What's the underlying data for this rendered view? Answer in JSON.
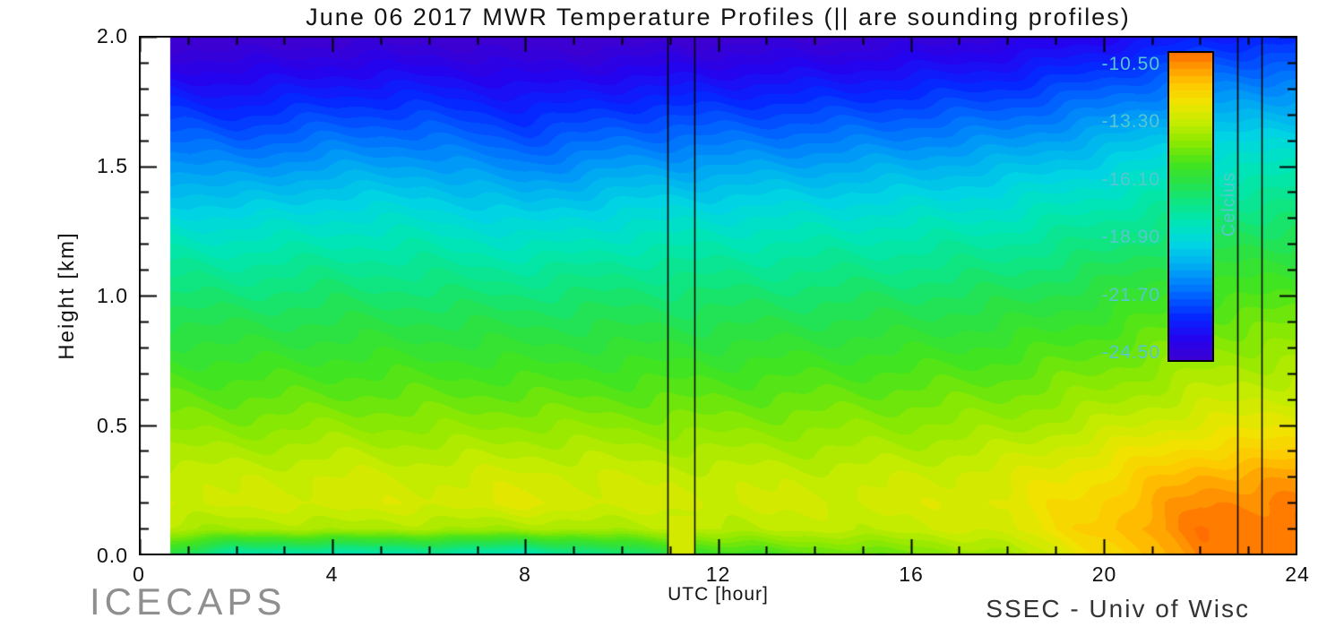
{
  "title": "June 06 2017 MWR Temperature Profiles (|| are sounding profiles)",
  "axes": {
    "xlabel": "UTC [hour]",
    "ylabel": "Height [km]"
  },
  "footer": {
    "left": "ICECAPS",
    "right": "SSEC - Univ of Wisc"
  },
  "chart_data": {
    "type": "heatmap",
    "title": "June 06 2017 MWR Temperature Profiles (|| are sounding profiles)",
    "xlabel": "UTC [hour]",
    "ylabel": "Height [km]",
    "xlim": [
      0,
      24
    ],
    "ylim": [
      0,
      2
    ],
    "x_ticks": [
      0,
      4,
      8,
      12,
      16,
      20,
      24
    ],
    "x_tick_labels": [
      "0",
      "4",
      "8",
      "12",
      "16",
      "20",
      "24"
    ],
    "x_minor_step": 1,
    "y_ticks": [
      0,
      0.5,
      1,
      1.5,
      2
    ],
    "y_tick_labels": [
      "0.0",
      "0.5",
      "1.0",
      "1.5",
      "2.0"
    ],
    "y_minor_step": 0.1,
    "data_start_hour": 0.65,
    "contour_step": 0.35,
    "color_domain": [
      -24.75,
      -9.85
    ],
    "soundings_hours": [
      10.95,
      11.5,
      22.75,
      23.25
    ],
    "colorbar": {
      "label": "Celcius",
      "tick_values": [
        -10.5,
        -13.3,
        -16.1,
        -18.9,
        -21.7,
        -24.5
      ],
      "tick_labels": [
        "-10.50",
        "-13.30",
        "-16.10",
        "-18.90",
        "-21.70",
        "-24.50"
      ],
      "text_color": "#58c6d2"
    },
    "colormap": [
      {
        "u": 0.0,
        "c": "#3c00d2"
      },
      {
        "u": 0.07,
        "c": "#2403f0"
      },
      {
        "u": 0.14,
        "c": "#0428ff"
      },
      {
        "u": 0.22,
        "c": "#006cff"
      },
      {
        "u": 0.3,
        "c": "#00a8f4"
      },
      {
        "u": 0.38,
        "c": "#00d6e2"
      },
      {
        "u": 0.45,
        "c": "#00e6b4"
      },
      {
        "u": 0.52,
        "c": "#10e57c"
      },
      {
        "u": 0.58,
        "c": "#2ae246"
      },
      {
        "u": 0.64,
        "c": "#44e41c"
      },
      {
        "u": 0.71,
        "c": "#8ee800"
      },
      {
        "u": 0.78,
        "c": "#c8ec00"
      },
      {
        "u": 0.84,
        "c": "#f0e400"
      },
      {
        "u": 0.9,
        "c": "#ffc800"
      },
      {
        "u": 0.95,
        "c": "#ff9c00"
      },
      {
        "u": 1.0,
        "c": "#ff6e00"
      }
    ],
    "grid": {
      "times": [
        0,
        2,
        4,
        6,
        8,
        10,
        12,
        14,
        16,
        18,
        20,
        22,
        24
      ],
      "heights": [
        0.0,
        0.1,
        0.2,
        0.3,
        0.4,
        0.5,
        0.6,
        0.7,
        0.8,
        0.9,
        1.0,
        1.1,
        1.2,
        1.3,
        1.4,
        1.5,
        1.6,
        1.7,
        1.8,
        1.9,
        2.0
      ],
      "temps_by_height": [
        [
          -15.5,
          -18.0,
          -18.2,
          -18.0,
          -18.3,
          -17.0,
          -15.5,
          -15.0,
          -14.6,
          -13.8,
          -12.0,
          -10.2,
          -10.0
        ],
        [
          -13.4,
          -13.8,
          -13.6,
          -13.7,
          -13.8,
          -13.6,
          -13.4,
          -13.3,
          -13.2,
          -12.8,
          -11.4,
          -10.0,
          -9.9
        ],
        [
          -12.9,
          -13.0,
          -12.8,
          -12.9,
          -12.6,
          -12.9,
          -13.0,
          -13.0,
          -12.9,
          -12.6,
          -11.6,
          -10.3,
          -10.1
        ],
        [
          -13.1,
          -13.2,
          -13.0,
          -13.1,
          -12.9,
          -13.1,
          -13.2,
          -13.2,
          -13.1,
          -12.8,
          -12.0,
          -10.9,
          -10.7
        ],
        [
          -13.6,
          -13.7,
          -13.5,
          -13.6,
          -13.5,
          -13.6,
          -13.7,
          -13.7,
          -13.6,
          -13.3,
          -12.6,
          -11.8,
          -11.6
        ],
        [
          -14.2,
          -14.3,
          -14.1,
          -14.2,
          -14.1,
          -14.2,
          -14.3,
          -14.2,
          -14.1,
          -13.9,
          -13.3,
          -12.6,
          -12.4
        ],
        [
          -14.7,
          -14.8,
          -14.7,
          -14.7,
          -14.7,
          -14.8,
          -14.8,
          -14.7,
          -14.6,
          -14.4,
          -13.9,
          -13.2,
          -13.0
        ],
        [
          -15.2,
          -15.3,
          -15.2,
          -15.2,
          -15.3,
          -15.3,
          -15.3,
          -15.2,
          -15.1,
          -14.9,
          -14.4,
          -13.7,
          -13.5
        ],
        [
          -15.7,
          -15.8,
          -15.7,
          -15.7,
          -15.8,
          -15.8,
          -15.8,
          -15.7,
          -15.6,
          -15.4,
          -14.9,
          -14.2,
          -14.0
        ],
        [
          -16.2,
          -16.3,
          -16.2,
          -16.2,
          -16.3,
          -16.3,
          -16.3,
          -16.2,
          -16.1,
          -15.9,
          -15.4,
          -14.7,
          -14.5
        ],
        [
          -16.8,
          -16.9,
          -16.7,
          -16.8,
          -16.9,
          -16.8,
          -16.8,
          -16.7,
          -16.6,
          -16.4,
          -15.9,
          -15.3,
          -15.1
        ],
        [
          -17.4,
          -17.5,
          -17.3,
          -17.4,
          -17.6,
          -17.4,
          -17.4,
          -17.3,
          -17.2,
          -17.0,
          -16.5,
          -15.8,
          -15.6
        ],
        [
          -18.1,
          -18.2,
          -18.0,
          -18.0,
          -18.4,
          -18.1,
          -18.0,
          -17.9,
          -17.8,
          -17.6,
          -17.1,
          -16.4,
          -16.2
        ],
        [
          -18.8,
          -19.0,
          -18.7,
          -18.7,
          -19.2,
          -18.8,
          -18.7,
          -18.6,
          -18.5,
          -18.3,
          -17.7,
          -17.0,
          -16.8
        ],
        [
          -19.6,
          -19.9,
          -19.5,
          -19.5,
          -20.1,
          -19.6,
          -19.5,
          -19.4,
          -19.3,
          -19.0,
          -18.4,
          -17.7,
          -17.5
        ],
        [
          -20.5,
          -20.8,
          -20.4,
          -20.4,
          -21.0,
          -20.5,
          -20.4,
          -20.3,
          -20.1,
          -19.8,
          -19.2,
          -18.4,
          -18.2
        ],
        [
          -21.4,
          -21.7,
          -21.3,
          -21.3,
          -21.9,
          -21.4,
          -21.3,
          -21.2,
          -21.0,
          -20.7,
          -20.0,
          -19.2,
          -19.0
        ],
        [
          -22.3,
          -22.6,
          -22.2,
          -22.2,
          -22.7,
          -22.3,
          -22.2,
          -22.1,
          -21.9,
          -21.6,
          -20.9,
          -20.1,
          -19.9
        ],
        [
          -23.2,
          -23.4,
          -23.1,
          -23.1,
          -23.5,
          -23.2,
          -23.1,
          -23.0,
          -22.8,
          -22.5,
          -21.8,
          -21.0,
          -20.8
        ],
        [
          -24.1,
          -24.2,
          -24.0,
          -24.0,
          -24.3,
          -24.1,
          -24.0,
          -23.9,
          -23.7,
          -23.4,
          -22.8,
          -22.0,
          -21.8
        ],
        [
          -25.0,
          -25.1,
          -24.9,
          -24.9,
          -25.1,
          -25.0,
          -24.9,
          -24.8,
          -24.6,
          -24.3,
          -23.7,
          -23.0,
          -22.8
        ]
      ]
    }
  }
}
